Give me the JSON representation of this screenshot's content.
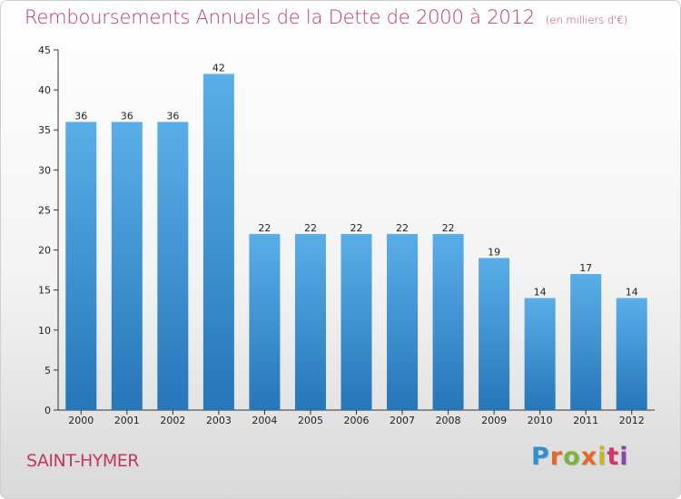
{
  "title": "Remboursements Annuels de la Dette de 2000 à 2012",
  "unit_note": "(en milliers d'€)",
  "commune": "SAINT-HYMER",
  "brand": [
    "P",
    "r",
    "o",
    "x",
    "i",
    "t",
    "i"
  ],
  "colors": {
    "title": "#c0395e",
    "bar_top": "#5aaee8",
    "bar_bottom": "#2676b8",
    "axis": "#333333"
  },
  "chart_data": {
    "type": "bar",
    "categories": [
      "2000",
      "2001",
      "2002",
      "2003",
      "2004",
      "2005",
      "2006",
      "2007",
      "2008",
      "2009",
      "2010",
      "2011",
      "2012"
    ],
    "values": [
      36,
      36,
      36,
      42,
      22,
      22,
      22,
      22,
      22,
      19,
      14,
      17,
      14
    ],
    "ylim": [
      0,
      45
    ],
    "yticks": [
      0,
      5,
      10,
      15,
      20,
      25,
      30,
      35,
      40,
      45
    ],
    "grid": false,
    "data_labels": true
  }
}
